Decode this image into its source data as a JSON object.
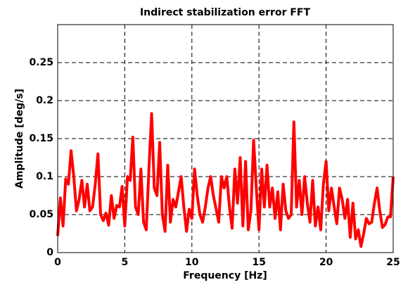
{
  "chart_data": {
    "type": "line",
    "title": "Indirect stabilization error FFT",
    "x_label": "Frequency [Hz]",
    "y_label": "Amplitude [deg/s]",
    "color": "#ff0000",
    "grid": true,
    "xlim": [
      0,
      25
    ],
    "ylim": [
      0,
      0.3
    ],
    "xticks": [
      0,
      5,
      10,
      15,
      20,
      25
    ],
    "yticks": [
      0,
      0.05,
      0.1,
      0.15,
      0.2,
      0.25
    ],
    "x": [
      0,
      0.2,
      0.4,
      0.6,
      0.8,
      1,
      1.2,
      1.4,
      1.6,
      1.8,
      2,
      2.2,
      2.4,
      2.6,
      2.8,
      3,
      3.2,
      3.4,
      3.6,
      3.8,
      4,
      4.2,
      4.4,
      4.6,
      4.8,
      5,
      5.2,
      5.4,
      5.6,
      5.8,
      6,
      6.2,
      6.4,
      6.6,
      6.8,
      7,
      7.2,
      7.4,
      7.6,
      7.8,
      8,
      8.2,
      8.4,
      8.6,
      8.8,
      9,
      9.2,
      9.4,
      9.6,
      9.8,
      10,
      10.2,
      10.4,
      10.6,
      10.8,
      11,
      11.2,
      11.4,
      11.6,
      11.8,
      12,
      12.2,
      12.4,
      12.6,
      12.8,
      13,
      13.2,
      13.4,
      13.6,
      13.8,
      14,
      14.2,
      14.4,
      14.6,
      14.8,
      15,
      15.2,
      15.4,
      15.6,
      15.8,
      16,
      16.2,
      16.4,
      16.6,
      16.8,
      17,
      17.2,
      17.4,
      17.6,
      17.8,
      18,
      18.2,
      18.4,
      18.6,
      18.8,
      19,
      19.2,
      19.4,
      19.6,
      19.8,
      20,
      20.2,
      20.4,
      20.6,
      20.8,
      21,
      21.2,
      21.4,
      21.6,
      21.8,
      22,
      22.2,
      22.4,
      22.6,
      22.8,
      23,
      23.2,
      23.4,
      23.6,
      23.8,
      24,
      24.2,
      24.4,
      24.6,
      24.8,
      25
    ],
    "values": [
      0.022,
      0.072,
      0.035,
      0.097,
      0.09,
      0.134,
      0.1,
      0.055,
      0.07,
      0.095,
      0.06,
      0.09,
      0.055,
      0.06,
      0.09,
      0.13,
      0.05,
      0.042,
      0.052,
      0.036,
      0.075,
      0.045,
      0.062,
      0.06,
      0.087,
      0.035,
      0.1,
      0.095,
      0.152,
      0.06,
      0.05,
      0.11,
      0.04,
      0.03,
      0.11,
      0.183,
      0.085,
      0.075,
      0.145,
      0.05,
      0.028,
      0.115,
      0.04,
      0.07,
      0.06,
      0.08,
      0.1,
      0.06,
      0.028,
      0.057,
      0.045,
      0.11,
      0.075,
      0.05,
      0.04,
      0.06,
      0.085,
      0.1,
      0.075,
      0.058,
      0.04,
      0.1,
      0.085,
      0.1,
      0.06,
      0.032,
      0.11,
      0.065,
      0.125,
      0.035,
      0.12,
      0.03,
      0.055,
      0.148,
      0.085,
      0.03,
      0.11,
      0.06,
      0.115,
      0.06,
      0.085,
      0.045,
      0.08,
      0.03,
      0.09,
      0.055,
      0.045,
      0.05,
      0.172,
      0.06,
      0.095,
      0.05,
      0.1,
      0.065,
      0.04,
      0.095,
      0.035,
      0.06,
      0.03,
      0.09,
      0.12,
      0.055,
      0.085,
      0.06,
      0.038,
      0.085,
      0.07,
      0.045,
      0.07,
      0.02,
      0.065,
      0.018,
      0.03,
      0.008,
      0.025,
      0.045,
      0.038,
      0.04,
      0.065,
      0.085,
      0.055,
      0.033,
      0.037,
      0.047,
      0.047,
      0.1
    ]
  }
}
